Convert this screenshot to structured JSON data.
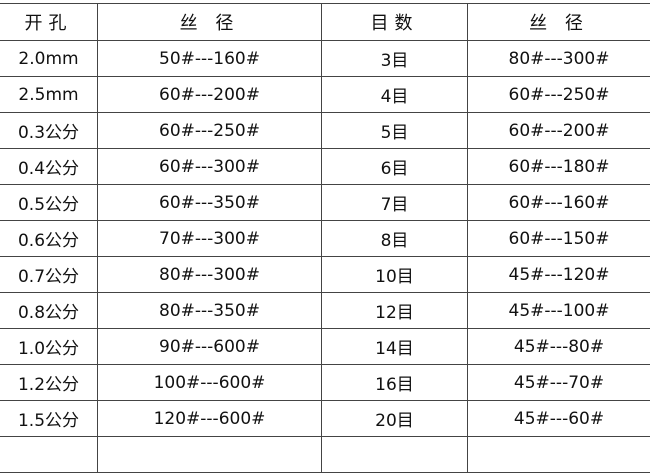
{
  "headers": [
    "开孔",
    "丝 径",
    "目数",
    "丝 径"
  ],
  "rows": [
    [
      "2.0mm",
      "50#---160#",
      "3目",
      "80#---300#"
    ],
    [
      "2.5mm",
      "60#---200#",
      "4目",
      "60#---250#"
    ],
    [
      "0.3公分",
      "60#---250#",
      "5目",
      "60#---200#"
    ],
    [
      "0.4公分",
      "60#---300#",
      "6目",
      "60#---180#"
    ],
    [
      "0.5公分",
      "60#---350#",
      "7目",
      "60#---160#"
    ],
    [
      "0.6公分",
      "70#---300#",
      "8目",
      "60#---150#"
    ],
    [
      "0.7公分",
      "80#---300#",
      "10目",
      "45#---120#"
    ],
    [
      "0.8公分",
      "80#---350#",
      "12目",
      "45#---100#"
    ],
    [
      "1.0公分",
      "90#---600#",
      "14目",
      "45#---80#"
    ],
    [
      "1.2公分",
      "100#---600#",
      "16目",
      "45#---70#"
    ],
    [
      "1.5公分",
      "120#---600#",
      "20目",
      "45#---60#"
    ]
  ]
}
